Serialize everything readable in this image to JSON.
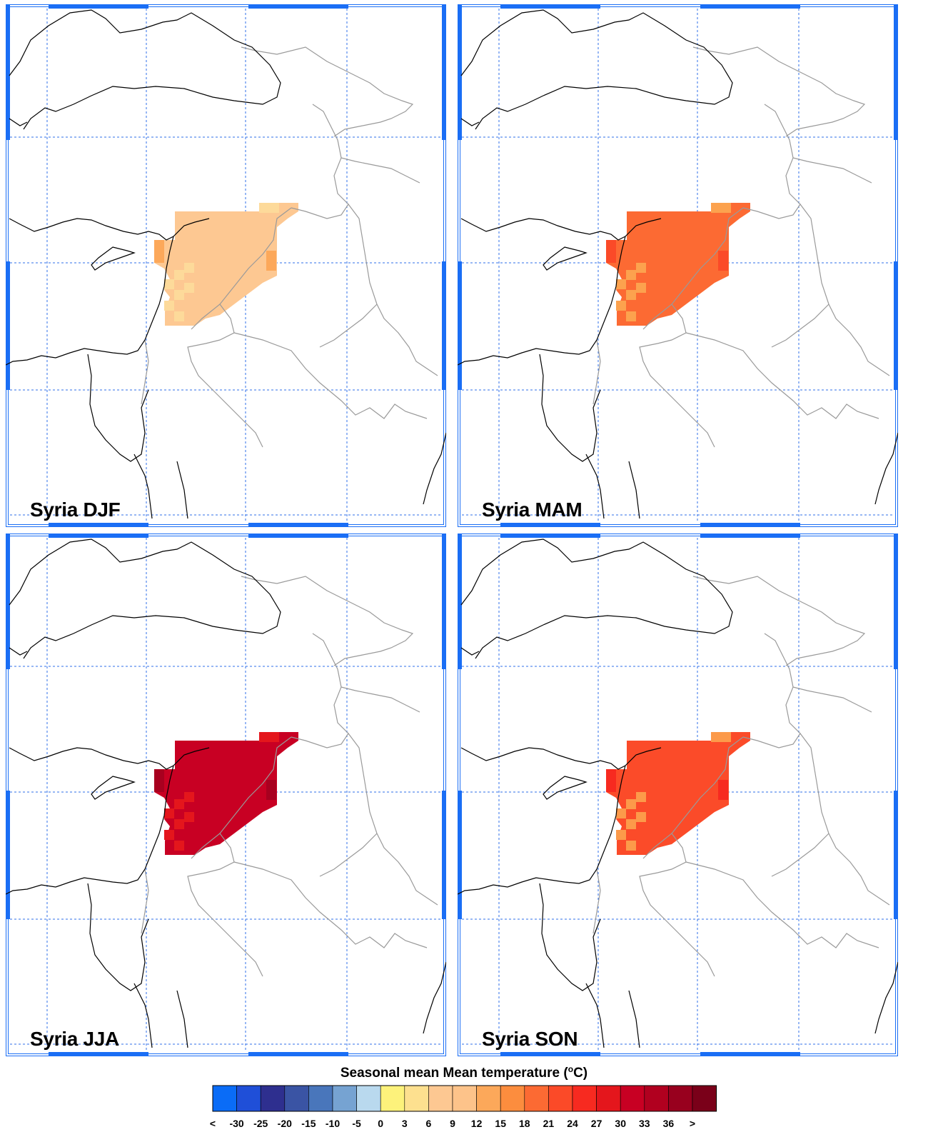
{
  "panels": [
    {
      "label": "Syria DJF",
      "season": "DJF",
      "fill": "#fdc892",
      "accent": "#fdda9a",
      "edge": "#fca85a"
    },
    {
      "label": "Syria MAM",
      "season": "MAM",
      "fill": "#fc6a33",
      "accent": "#fca24e",
      "edge": "#fb4a28"
    },
    {
      "label": "Syria JJA",
      "season": "JJA",
      "fill": "#c80023",
      "accent": "#e4161c",
      "edge": "#a8001f"
    },
    {
      "label": "Syria SON",
      "season": "SON",
      "fill": "#fb4b29",
      "accent": "#fc9a4a",
      "edge": "#f72a20"
    }
  ],
  "legend": {
    "title": "Seasonal mean Mean temperature (",
    "title_sup": "o",
    "title_unit": "C)",
    "labels": [
      "<",
      "-30",
      "-25",
      "-20",
      "-15",
      "-10",
      "-5",
      "0",
      "3",
      "6",
      "9",
      "12",
      "15",
      "18",
      "21",
      "24",
      "27",
      "30",
      "33",
      "36",
      ">"
    ],
    "colors": [
      "#0a6cf7",
      "#1f4fd8",
      "#2e2f8f",
      "#3a54a4",
      "#4976bb",
      "#76a3d2",
      "#b9d9ee",
      "#fdf27b",
      "#fde08f",
      "#fdc892",
      "#fdc38a",
      "#fca85a",
      "#fc8d3e",
      "#fc6a33",
      "#fb4a28",
      "#f72a20",
      "#e4161c",
      "#c80023",
      "#b1001f",
      "#98001e",
      "#7a0019"
    ]
  }
}
